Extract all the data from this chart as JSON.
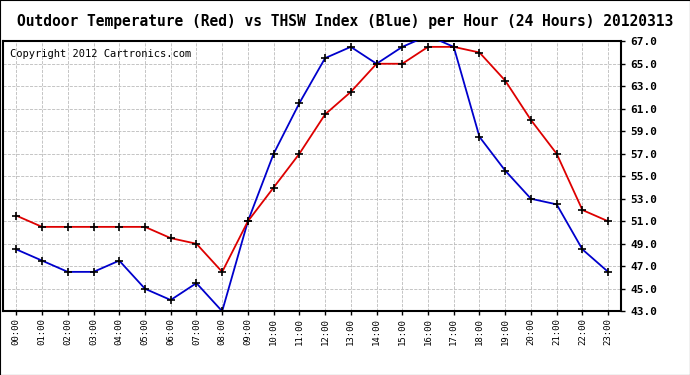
{
  "title": "Outdoor Temperature (Red) vs THSW Index (Blue) per Hour (24 Hours) 20120313",
  "copyright": "Copyright 2012 Cartronics.com",
  "hours": [
    "00:00",
    "01:00",
    "02:00",
    "03:00",
    "04:00",
    "05:00",
    "06:00",
    "07:00",
    "08:00",
    "09:00",
    "10:00",
    "11:00",
    "12:00",
    "13:00",
    "14:00",
    "15:00",
    "16:00",
    "17:00",
    "18:00",
    "19:00",
    "20:00",
    "21:00",
    "22:00",
    "23:00"
  ],
  "red_temp": [
    51.5,
    50.5,
    50.5,
    50.5,
    50.5,
    50.5,
    49.5,
    49.0,
    46.5,
    51.0,
    54.0,
    57.0,
    60.5,
    62.5,
    65.0,
    65.0,
    66.5,
    66.5,
    66.0,
    63.5,
    60.0,
    57.0,
    52.0,
    51.0
  ],
  "blue_thsw": [
    48.5,
    47.5,
    46.5,
    46.5,
    47.5,
    45.0,
    44.0,
    45.5,
    43.0,
    51.0,
    57.0,
    61.5,
    65.5,
    66.5,
    65.0,
    66.5,
    67.5,
    66.5,
    58.5,
    55.5,
    53.0,
    52.5,
    48.5,
    46.5
  ],
  "ylim_min": 43.0,
  "ylim_max": 67.0,
  "yticks": [
    43.0,
    45.0,
    47.0,
    49.0,
    51.0,
    53.0,
    55.0,
    57.0,
    59.0,
    61.0,
    63.0,
    65.0,
    67.0
  ],
  "red_color": "#dd0000",
  "blue_color": "#0000cc",
  "background_color": "#ffffff",
  "grid_color": "#bbbbbb",
  "title_fontsize": 10.5,
  "copyright_fontsize": 7.5
}
